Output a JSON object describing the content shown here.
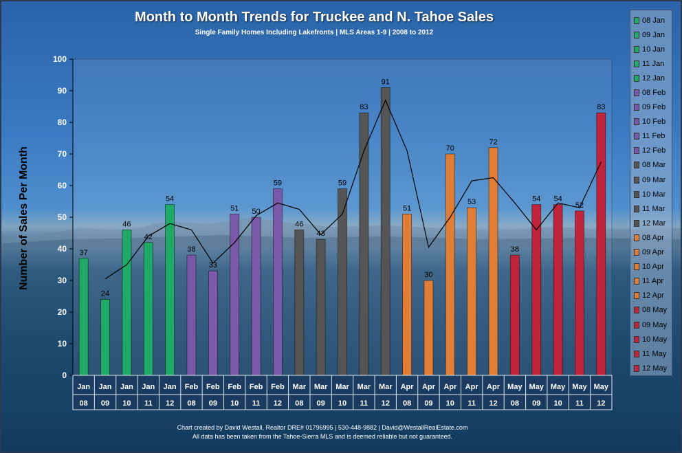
{
  "chart_data": {
    "type": "bar",
    "title": "Month to Month Trends for Truckee and N. Tahoe Sales",
    "subtitle": "Single Family Homes Including Lakefronts | MLS Areas 1-9 | 2008 to 2012",
    "ylabel": "Number of Sales Per Month",
    "xlabel": "",
    "ylim": [
      0,
      100
    ],
    "yticks": [
      0,
      10,
      20,
      30,
      40,
      50,
      60,
      70,
      80,
      90,
      100
    ],
    "grid": false,
    "legend_position": "right",
    "categories": [
      {
        "month": "Jan",
        "year": "08"
      },
      {
        "month": "Jan",
        "year": "09"
      },
      {
        "month": "Jan",
        "year": "10"
      },
      {
        "month": "Jan",
        "year": "11"
      },
      {
        "month": "Jan",
        "year": "12"
      },
      {
        "month": "Feb",
        "year": "08"
      },
      {
        "month": "Feb",
        "year": "09"
      },
      {
        "month": "Feb",
        "year": "10"
      },
      {
        "month": "Feb",
        "year": "11"
      },
      {
        "month": "Feb",
        "year": "12"
      },
      {
        "month": "Mar",
        "year": "08"
      },
      {
        "month": "Mar",
        "year": "09"
      },
      {
        "month": "Mar",
        "year": "10"
      },
      {
        "month": "Mar",
        "year": "11"
      },
      {
        "month": "Mar",
        "year": "12"
      },
      {
        "month": "Apr",
        "year": "08"
      },
      {
        "month": "Apr",
        "year": "09"
      },
      {
        "month": "Apr",
        "year": "10"
      },
      {
        "month": "Apr",
        "year": "11"
      },
      {
        "month": "Apr",
        "year": "12"
      },
      {
        "month": "May",
        "year": "08"
      },
      {
        "month": "May",
        "year": "09"
      },
      {
        "month": "May",
        "year": "10"
      },
      {
        "month": "May",
        "year": "11"
      },
      {
        "month": "May",
        "year": "12"
      }
    ],
    "values": [
      37,
      24,
      46,
      42,
      54,
      38,
      33,
      51,
      50,
      59,
      46,
      43,
      59,
      83,
      91,
      51,
      30,
      70,
      53,
      72,
      38,
      54,
      54,
      52,
      83
    ],
    "trendline": [
      null,
      30.5,
      35,
      44,
      48,
      46,
      35.5,
      42,
      50.5,
      54.5,
      52.5,
      44.5,
      51,
      71,
      87,
      71,
      40.5,
      50,
      61.5,
      62.5,
      54.5,
      46,
      54.5,
      53,
      67.5
    ],
    "legend": [
      "08 Jan",
      "09 Jan",
      "10 Jan",
      "11 Jan",
      "12 Jan",
      "08 Feb",
      "09 Feb",
      "10 Feb",
      "11 Feb",
      "12 Feb",
      "08 Mar",
      "09 Mar",
      "10 Mar",
      "11 Mar",
      "12 Mar",
      "08 Apr",
      "09 Apr",
      "10 Apr",
      "11 Apr",
      "12 Apr",
      "08 May",
      "09 May",
      "10 May",
      "11 May",
      "12 May"
    ],
    "month_colors": {
      "Jan": "#1faa68",
      "Feb": "#7a5aa8",
      "Mar": "#555555",
      "Apr": "#e07e38",
      "May": "#c0243c"
    }
  },
  "footer": {
    "line1": "Chart created by David Westall, Realtor DRE# 01796995 | 530-448-9882 | David@WestallRealEstate.com",
    "line2": "All data has been taken from the Tahoe-Sierra MLS and is deemed reliable but not guaranteed."
  }
}
